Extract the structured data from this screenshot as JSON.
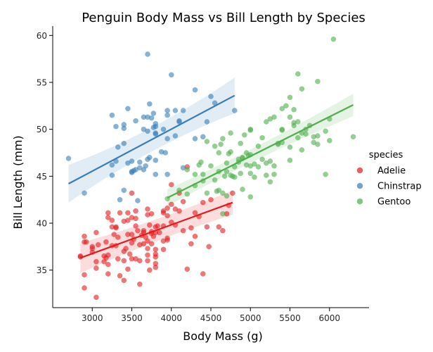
{
  "chart_data": {
    "type": "scatter",
    "title": "Penguin Body Mass vs Bill Length by Species",
    "xlabel": "Body Mass (g)",
    "ylabel": "Bill Length (mm)",
    "xlim": [
      2500,
      6500
    ],
    "ylim": [
      31,
      61
    ],
    "xticks": [
      3000,
      3500,
      4000,
      4500,
      5000,
      5500,
      6000
    ],
    "yticks": [
      35,
      40,
      45,
      50,
      55,
      60
    ],
    "grid": false,
    "legend": {
      "title": "species",
      "placement": "center-right"
    },
    "series": [
      {
        "name": "Adelie",
        "color": "#e41a1c",
        "regression": {
          "x": [
            2850,
            4775
          ],
          "y": [
            36.3,
            42.2
          ],
          "band": [
            1.6,
            0.9,
            1.3
          ]
        },
        "points": [
          [
            2850,
            36.5
          ],
          [
            2850,
            36.4
          ],
          [
            2900,
            38.6
          ],
          [
            2900,
            33.1
          ],
          [
            2900,
            34.5
          ],
          [
            2900,
            38.0
          ],
          [
            2925,
            38.0
          ],
          [
            3000,
            37.3
          ],
          [
            3000,
            36.9
          ],
          [
            3000,
            37.5
          ],
          [
            3050,
            35.9
          ],
          [
            3050,
            35.2
          ],
          [
            3050,
            39.0
          ],
          [
            3050,
            32.1
          ],
          [
            3075,
            37.7
          ],
          [
            3150,
            36.5
          ],
          [
            3150,
            35.9
          ],
          [
            3175,
            36.3
          ],
          [
            3175,
            38.0
          ],
          [
            3200,
            41.1
          ],
          [
            3200,
            40.6
          ],
          [
            3200,
            35.6
          ],
          [
            3200,
            36.6
          ],
          [
            3200,
            34.6
          ],
          [
            3250,
            39.6
          ],
          [
            3250,
            37.6
          ],
          [
            3250,
            40.3
          ],
          [
            3275,
            38.8
          ],
          [
            3300,
            39.5
          ],
          [
            3300,
            37.6
          ],
          [
            3300,
            39.6
          ],
          [
            3325,
            36.2
          ],
          [
            3325,
            38.5
          ],
          [
            3350,
            34.4
          ],
          [
            3350,
            41.1
          ],
          [
            3400,
            36.0
          ],
          [
            3400,
            37.0
          ],
          [
            3400,
            33.9
          ],
          [
            3400,
            40.2
          ],
          [
            3425,
            37.3
          ],
          [
            3450,
            38.8
          ],
          [
            3450,
            41.1
          ],
          [
            3450,
            35.1
          ],
          [
            3450,
            40.3
          ],
          [
            3475,
            36.7
          ],
          [
            3500,
            36.2
          ],
          [
            3500,
            37.9
          ],
          [
            3500,
            40.6
          ],
          [
            3500,
            43.2
          ],
          [
            3500,
            38.8
          ],
          [
            3525,
            38.3
          ],
          [
            3550,
            41.3
          ],
          [
            3550,
            39.7
          ],
          [
            3550,
            40.5
          ],
          [
            3550,
            36.2
          ],
          [
            3575,
            39.2
          ],
          [
            3600,
            33.5
          ],
          [
            3600,
            36.0
          ],
          [
            3600,
            37.7
          ],
          [
            3625,
            38.7
          ],
          [
            3650,
            39.0
          ],
          [
            3650,
            39.2
          ],
          [
            3650,
            37.8
          ],
          [
            3675,
            38.5
          ],
          [
            3700,
            38.1
          ],
          [
            3700,
            36.6
          ],
          [
            3700,
            37.3
          ],
          [
            3700,
            41.5
          ],
          [
            3700,
            40.9
          ],
          [
            3700,
            36.0
          ],
          [
            3725,
            35.0
          ],
          [
            3725,
            39.8
          ],
          [
            3750,
            39.1
          ],
          [
            3750,
            37.8
          ],
          [
            3750,
            38.9
          ],
          [
            3750,
            41.0
          ],
          [
            3775,
            38.6
          ],
          [
            3800,
            36.4
          ],
          [
            3800,
            36.7
          ],
          [
            3800,
            39.6
          ],
          [
            3800,
            35.7
          ],
          [
            3800,
            35.3
          ],
          [
            3800,
            37.2
          ],
          [
            3800,
            39.0
          ],
          [
            3825,
            39.7
          ],
          [
            3850,
            39.0
          ],
          [
            3900,
            41.1
          ],
          [
            3900,
            41.3
          ],
          [
            3900,
            37.2
          ],
          [
            3900,
            39.7
          ],
          [
            3900,
            38.1
          ],
          [
            3950,
            38.2
          ],
          [
            3950,
            40.8
          ],
          [
            3950,
            38.4
          ],
          [
            3950,
            41.6
          ],
          [
            4000,
            44.1
          ],
          [
            4000,
            42.0
          ],
          [
            4000,
            40.1
          ],
          [
            4050,
            39.8
          ],
          [
            4050,
            41.5
          ],
          [
            4100,
            41.3
          ],
          [
            4100,
            43.2
          ],
          [
            4150,
            39.2
          ],
          [
            4150,
            42.3
          ],
          [
            4200,
            46.0
          ],
          [
            4200,
            35.1
          ],
          [
            4250,
            39.5
          ],
          [
            4250,
            37.8
          ],
          [
            4300,
            41.1
          ],
          [
            4300,
            38.6
          ],
          [
            4350,
            40.7
          ],
          [
            4400,
            34.6
          ],
          [
            4400,
            42.2
          ],
          [
            4450,
            39.6
          ],
          [
            4475,
            37.5
          ],
          [
            4500,
            42.5
          ],
          [
            4600,
            39.6
          ],
          [
            4650,
            39.2
          ],
          [
            4700,
            41.0
          ],
          [
            4725,
            41.9
          ],
          [
            4775,
            43.2
          ]
        ]
      },
      {
        "name": "Chinstrap",
        "color": "#377eb8",
        "regression": {
          "x": [
            2700,
            4800
          ],
          "y": [
            44.2,
            53.6
          ],
          "band": [
            2.0,
            0.6,
            1.9
          ]
        },
        "points": [
          [
            2700,
            46.9
          ],
          [
            2900,
            43.2
          ],
          [
            3250,
            46.2
          ],
          [
            3250,
            45.1
          ],
          [
            3250,
            51.5
          ],
          [
            3300,
            50.3
          ],
          [
            3300,
            46.6
          ],
          [
            3325,
            48.1
          ],
          [
            3350,
            42.5
          ],
          [
            3400,
            50.1
          ],
          [
            3400,
            50.5
          ],
          [
            3400,
            43.5
          ],
          [
            3400,
            48.5
          ],
          [
            3450,
            46.4
          ],
          [
            3450,
            52.2
          ],
          [
            3500,
            45.4
          ],
          [
            3500,
            45.5
          ],
          [
            3500,
            46.6
          ],
          [
            3525,
            45.6
          ],
          [
            3550,
            50.9
          ],
          [
            3550,
            45.7
          ],
          [
            3575,
            42.4
          ],
          [
            3600,
            46.5
          ],
          [
            3600,
            45.9
          ],
          [
            3650,
            45.7
          ],
          [
            3650,
            50.0
          ],
          [
            3650,
            51.3
          ],
          [
            3675,
            46.1
          ],
          [
            3700,
            46.8
          ],
          [
            3700,
            49.8
          ],
          [
            3700,
            51.3
          ],
          [
            3700,
            58.0
          ],
          [
            3725,
            47.0
          ],
          [
            3725,
            52.7
          ],
          [
            3750,
            51.2
          ],
          [
            3775,
            51.7
          ],
          [
            3775,
            50.2
          ],
          [
            3800,
            49.6
          ],
          [
            3800,
            50.3
          ],
          [
            3800,
            50.6
          ],
          [
            3800,
            45.2
          ],
          [
            3800,
            46.7
          ],
          [
            3800,
            49.5
          ],
          [
            3875,
            47.6
          ],
          [
            3900,
            50.0
          ],
          [
            3925,
            47.5
          ],
          [
            3950,
            49.0
          ],
          [
            3950,
            52.0
          ],
          [
            3950,
            51.5
          ],
          [
            3950,
            45.2
          ],
          [
            4000,
            55.8
          ],
          [
            4050,
            52.0
          ],
          [
            4050,
            49.3
          ],
          [
            4100,
            50.9
          ],
          [
            4100,
            50.8
          ],
          [
            4150,
            52.0
          ],
          [
            4150,
            45.9
          ],
          [
            4300,
            54.2
          ],
          [
            4300,
            49.0
          ],
          [
            4400,
            49.2
          ],
          [
            4450,
            50.8
          ],
          [
            4500,
            53.5
          ],
          [
            4550,
            52.8
          ],
          [
            4800,
            52.0
          ]
        ]
      },
      {
        "name": "Gentoo",
        "color": "#4daf4a",
        "regression": {
          "x": [
            3950,
            6300
          ],
          "y": [
            42.7,
            52.6
          ],
          "band": [
            0.9,
            0.4,
            1.2
          ]
        },
        "points": [
          [
            3950,
            42.6
          ],
          [
            4100,
            43.5
          ],
          [
            4200,
            45.7
          ],
          [
            4200,
            43.1
          ],
          [
            4300,
            45.2
          ],
          [
            4300,
            44.0
          ],
          [
            4350,
            46.2
          ],
          [
            4375,
            46.5
          ],
          [
            4400,
            44.5
          ],
          [
            4400,
            45.2
          ],
          [
            4450,
            43.2
          ],
          [
            4450,
            48.7
          ],
          [
            4500,
            46.1
          ],
          [
            4550,
            48.2
          ],
          [
            4550,
            44.6
          ],
          [
            4575,
            43.4
          ],
          [
            4600,
            45.5
          ],
          [
            4600,
            47.5
          ],
          [
            4600,
            43.5
          ],
          [
            4625,
            48.4
          ],
          [
            4650,
            49.0
          ],
          [
            4650,
            43.2
          ],
          [
            4650,
            41.0
          ],
          [
            4675,
            45.0
          ],
          [
            4700,
            46.4
          ],
          [
            4700,
            45.5
          ],
          [
            4700,
            42.9
          ],
          [
            4725,
            47.4
          ],
          [
            4750,
            47.6
          ],
          [
            4750,
            45.1
          ],
          [
            4750,
            49.6
          ],
          [
            4775,
            45.0
          ],
          [
            4800,
            46.0
          ],
          [
            4800,
            44.9
          ],
          [
            4850,
            46.5
          ],
          [
            4850,
            46.8
          ],
          [
            4875,
            45.3
          ],
          [
            4875,
            48.5
          ],
          [
            4900,
            47.0
          ],
          [
            4900,
            46.9
          ],
          [
            4900,
            43.6
          ],
          [
            4925,
            49.4
          ],
          [
            4950,
            47.5
          ],
          [
            4950,
            46.2
          ],
          [
            4975,
            47.2
          ],
          [
            5000,
            47.3
          ],
          [
            5000,
            50.0
          ],
          [
            5000,
            42.8
          ],
          [
            5000,
            46.1
          ],
          [
            5000,
            49.9
          ],
          [
            5000,
            45.3
          ],
          [
            5050,
            46.3
          ],
          [
            5050,
            44.9
          ],
          [
            5100,
            46.0
          ],
          [
            5100,
            48.2
          ],
          [
            5150,
            49.1
          ],
          [
            5150,
            46.8
          ],
          [
            5200,
            46.4
          ],
          [
            5200,
            50.8
          ],
          [
            5200,
            45.1
          ],
          [
            5250,
            46.6
          ],
          [
            5250,
            51.1
          ],
          [
            5250,
            44.4
          ],
          [
            5300,
            46.1
          ],
          [
            5300,
            45.2
          ],
          [
            5300,
            51.3
          ],
          [
            5350,
            48.4
          ],
          [
            5350,
            48.5
          ],
          [
            5400,
            50.0
          ],
          [
            5400,
            48.6
          ],
          [
            5400,
            52.2
          ],
          [
            5400,
            49.9
          ],
          [
            5450,
            52.5
          ],
          [
            5500,
            51.3
          ],
          [
            5500,
            48.1
          ],
          [
            5500,
            46.7
          ],
          [
            5500,
            53.4
          ],
          [
            5550,
            50.4
          ],
          [
            5550,
            52.1
          ],
          [
            5550,
            50.7
          ],
          [
            5600,
            49.1
          ],
          [
            5600,
            55.9
          ],
          [
            5600,
            50.8
          ],
          [
            5650,
            47.8
          ],
          [
            5650,
            54.3
          ],
          [
            5650,
            49.6
          ],
          [
            5700,
            49.5
          ],
          [
            5700,
            50.0
          ],
          [
            5750,
            50.4
          ],
          [
            5800,
            48.6
          ],
          [
            5800,
            49.2
          ],
          [
            5850,
            48.4
          ],
          [
            5850,
            49.3
          ],
          [
            5850,
            55.1
          ],
          [
            5950,
            45.2
          ],
          [
            5950,
            49.8
          ],
          [
            6000,
            48.8
          ],
          [
            6000,
            51.1
          ],
          [
            6050,
            59.6
          ],
          [
            6300,
            49.2
          ]
        ]
      }
    ]
  }
}
